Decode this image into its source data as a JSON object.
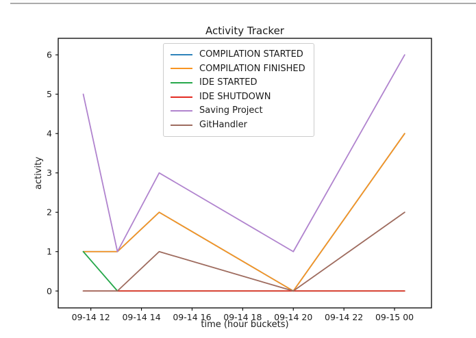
{
  "chart_data": {
    "type": "line",
    "title": "Activity Tracker",
    "xlabel": "time (hour buckets)",
    "ylabel": "activity",
    "x_unit": "hours since 09-14 00:00",
    "x_hours": [
      11.7,
      13.05,
      14.7,
      20.0,
      24.4
    ],
    "series": [
      {
        "name": "COMPILATION STARTED",
        "color": "#2d82ba",
        "values": [
          1,
          1,
          2,
          0,
          4
        ]
      },
      {
        "name": "COMPILATION FINISHED",
        "color": "#f89421",
        "values": [
          1,
          1,
          2,
          0,
          4
        ]
      },
      {
        "name": "IDE STARTED",
        "color": "#25a74a",
        "values": [
          1,
          0,
          0,
          0,
          0
        ]
      },
      {
        "name": "IDE SHUTDOWN",
        "color": "#e32b22",
        "values": [
          0,
          0,
          0,
          0,
          0
        ]
      },
      {
        "name": "Saving Project",
        "color": "#b083ce",
        "values": [
          5,
          1,
          3,
          1,
          6
        ]
      },
      {
        "name": "GitHandler",
        "color": "#9e6b5e",
        "values": [
          0,
          0,
          1,
          0,
          2
        ]
      }
    ],
    "x_ticks": [
      {
        "hour": 12,
        "label": "09-14 12"
      },
      {
        "hour": 14,
        "label": "09-14 14"
      },
      {
        "hour": 16,
        "label": "09-14 16"
      },
      {
        "hour": 18,
        "label": "09-14 18"
      },
      {
        "hour": 20,
        "label": "09-14 20"
      },
      {
        "hour": 22,
        "label": "09-14 22"
      },
      {
        "hour": 24,
        "label": "09-15 00"
      }
    ],
    "y_ticks": [
      0,
      1,
      2,
      3,
      4,
      5,
      6
    ],
    "xlim": [
      10.71,
      25.46
    ],
    "ylim": [
      -0.43,
      6.42
    ],
    "grid": false,
    "legend_position": "upper center-left",
    "spine_color": "#000000",
    "legend_border_color": "#cccccc"
  }
}
